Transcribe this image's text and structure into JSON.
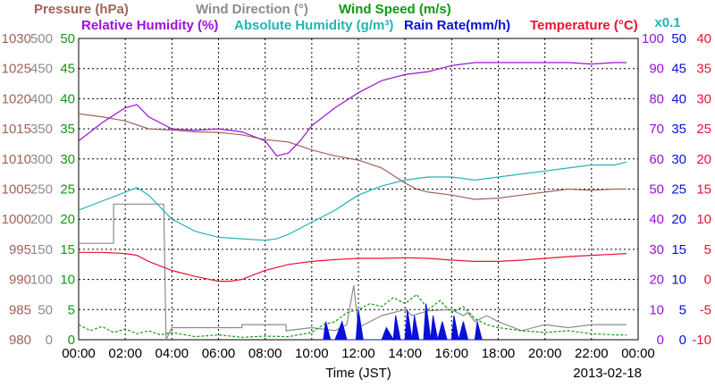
{
  "chart_data": {
    "type": "line",
    "date": "2013-02-18",
    "xlabel": "Time (JST)",
    "x_ticks": [
      "00:00",
      "02:00",
      "04:00",
      "06:00",
      "08:00",
      "10:00",
      "12:00",
      "14:00",
      "16:00",
      "18:00",
      "20:00",
      "22:00",
      "00:00"
    ],
    "x_range_hours": [
      0,
      24
    ],
    "grid": true,
    "legend": [
      {
        "label": "Pressure (hPa)",
        "color": "#a0635a"
      },
      {
        "label": "Wind Direction (°)",
        "color": "#8c8c8c"
      },
      {
        "label": "Wind Speed (m/s)",
        "color": "#119911"
      },
      {
        "label": "Relative Humidity (%)",
        "color": "#9a11dd"
      },
      {
        "label": "Absolute Humidity (g/m³)",
        "color": "#22b4b4"
      },
      {
        "label": "Rain Rate(mm/h)",
        "color": "#0a10d8"
      },
      {
        "label": "Temperature (°C)",
        "color": "#ee1133"
      }
    ],
    "axis_note": "x0.1",
    "axes": {
      "pressure": {
        "ticks": [
          "980",
          "985",
          "990",
          "995",
          "1000",
          "1005",
          "1010",
          "1015",
          "1020",
          "1025",
          "1030"
        ],
        "range": [
          980,
          1030
        ],
        "color": "#a0635a"
      },
      "wind_direction": {
        "ticks": [
          "0",
          "50",
          "100",
          "150",
          "200",
          "250",
          "300",
          "350",
          "400",
          "450",
          "500"
        ],
        "range": [
          0,
          500
        ],
        "color": "#8c8c8c"
      },
      "wind_speed": {
        "ticks": [
          "0",
          "5",
          "10",
          "15",
          "20",
          "25",
          "30",
          "35",
          "40",
          "45",
          "50"
        ],
        "range": [
          0,
          50
        ],
        "color": "#119911"
      },
      "humidity": {
        "ticks": [
          "0",
          "10",
          "20",
          "30",
          "40",
          "50",
          "60",
          "70",
          "80",
          "90",
          "100"
        ],
        "range": [
          0,
          100
        ],
        "color": "#9a11dd"
      },
      "rain": {
        "ticks": [
          "0",
          "5",
          "10",
          "15",
          "20",
          "25",
          "30",
          "35",
          "40",
          "45",
          "50"
        ],
        "range": [
          0,
          50
        ],
        "color": "#0a10d8"
      },
      "temperature": {
        "ticks": [
          "-10",
          "-5",
          "0",
          "5",
          "10",
          "15",
          "20",
          "25",
          "30",
          "35",
          "40"
        ],
        "range": [
          -10,
          40
        ],
        "color": "#ee1133"
      }
    },
    "series": [
      {
        "name": "Pressure (hPa)",
        "key": "pressure",
        "color": "#a0635a",
        "points": [
          [
            0,
            1017.5
          ],
          [
            1,
            1017.0
          ],
          [
            2,
            1016.3
          ],
          [
            3,
            1015.0
          ],
          [
            4,
            1014.8
          ],
          [
            5,
            1014.5
          ],
          [
            6,
            1014.4
          ],
          [
            7,
            1014.0
          ],
          [
            8,
            1013.2
          ],
          [
            9,
            1012.8
          ],
          [
            10,
            1011.5
          ],
          [
            11,
            1010.5
          ],
          [
            12,
            1009.8
          ],
          [
            13,
            1008.5
          ],
          [
            14,
            1006.0
          ],
          [
            14.5,
            1005.0
          ],
          [
            15,
            1004.5
          ],
          [
            16,
            1004.0
          ],
          [
            17,
            1003.3
          ],
          [
            18,
            1003.5
          ],
          [
            19,
            1004.0
          ],
          [
            20,
            1004.5
          ],
          [
            21,
            1005.0
          ],
          [
            22,
            1004.8
          ],
          [
            23,
            1005.0
          ],
          [
            23.5,
            1005.0
          ]
        ]
      },
      {
        "name": "Wind Direction (°)",
        "key": "wind_direction",
        "color": "#8c8c8c",
        "points": [
          [
            0,
            160
          ],
          [
            1.5,
            160
          ],
          [
            1.5,
            225
          ],
          [
            3.65,
            225
          ],
          [
            3.75,
            0
          ],
          [
            4,
            20
          ],
          [
            6.5,
            20
          ],
          [
            7,
            20
          ],
          [
            7,
            25
          ],
          [
            8.9,
            25
          ],
          [
            8.9,
            15
          ],
          [
            10,
            20
          ],
          [
            11,
            15
          ],
          [
            11.5,
            25
          ],
          [
            11.8,
            90
          ],
          [
            12,
            20
          ],
          [
            13,
            40
          ],
          [
            14,
            50
          ],
          [
            14.3,
            40
          ],
          [
            15,
            48
          ],
          [
            16,
            50
          ],
          [
            16.5,
            40
          ],
          [
            16.7,
            45
          ],
          [
            17,
            30
          ],
          [
            17.5,
            40
          ],
          [
            18,
            30
          ],
          [
            19,
            15
          ],
          [
            20,
            25
          ],
          [
            21,
            20
          ],
          [
            22,
            25
          ],
          [
            23.5,
            25
          ]
        ]
      },
      {
        "name": "Wind Speed (m/s)",
        "key": "wind_speed",
        "color": "#119911",
        "points": [
          [
            0,
            2.5
          ],
          [
            0.5,
            1.5
          ],
          [
            1,
            2.2
          ],
          [
            1.5,
            1.2
          ],
          [
            2,
            1.8
          ],
          [
            2.5,
            1.0
          ],
          [
            3,
            1.5
          ],
          [
            3.5,
            0.8
          ],
          [
            4,
            1.2
          ],
          [
            5,
            0.5
          ],
          [
            6,
            0.8
          ],
          [
            7,
            0.4
          ],
          [
            8,
            0.6
          ],
          [
            9,
            0.5
          ],
          [
            10,
            1.2
          ],
          [
            10.5,
            2.5
          ],
          [
            11,
            3
          ],
          [
            11.5,
            4.5
          ],
          [
            12,
            5
          ],
          [
            12.5,
            6
          ],
          [
            13,
            5.5
          ],
          [
            13.5,
            7
          ],
          [
            14,
            6
          ],
          [
            14.5,
            7.5
          ],
          [
            15,
            5
          ],
          [
            15.5,
            6.5
          ],
          [
            16,
            4.5
          ],
          [
            16.5,
            5.5
          ],
          [
            17,
            3.5
          ],
          [
            17.5,
            2.5
          ],
          [
            18,
            2
          ],
          [
            19,
            1.5
          ],
          [
            20,
            1.2
          ],
          [
            21,
            1.5
          ],
          [
            22,
            1.0
          ],
          [
            23,
            0.8
          ],
          [
            23.5,
            0.8
          ]
        ]
      },
      {
        "name": "Relative Humidity (%)",
        "key": "humidity",
        "color": "#9a11dd",
        "points": [
          [
            0,
            66
          ],
          [
            1,
            72
          ],
          [
            2,
            77
          ],
          [
            2.5,
            78
          ],
          [
            3,
            74
          ],
          [
            4,
            70
          ],
          [
            5,
            69.5
          ],
          [
            6,
            70
          ],
          [
            7,
            69
          ],
          [
            8,
            66
          ],
          [
            8.5,
            61
          ],
          [
            9,
            62
          ],
          [
            9.5,
            66
          ],
          [
            10,
            71
          ],
          [
            11,
            77
          ],
          [
            12,
            82
          ],
          [
            13,
            86
          ],
          [
            14,
            88
          ],
          [
            15,
            89
          ],
          [
            16,
            91
          ],
          [
            17,
            92
          ],
          [
            18,
            92
          ],
          [
            19,
            92
          ],
          [
            20,
            92
          ],
          [
            21,
            92
          ],
          [
            22,
            91.5
          ],
          [
            23,
            92
          ],
          [
            23.5,
            92
          ]
        ]
      },
      {
        "name": "Absolute Humidity (g/m³)",
        "key": "humidity",
        "color": "#22b4b4",
        "points": [
          [
            0,
            43
          ],
          [
            1,
            46
          ],
          [
            2,
            49
          ],
          [
            2.5,
            50.5
          ],
          [
            3,
            48
          ],
          [
            4,
            40
          ],
          [
            5,
            36
          ],
          [
            6,
            34
          ],
          [
            7,
            33.5
          ],
          [
            8,
            33
          ],
          [
            8.5,
            33.5
          ],
          [
            9,
            35
          ],
          [
            10,
            39
          ],
          [
            11,
            43
          ],
          [
            12,
            48
          ],
          [
            13,
            51
          ],
          [
            14,
            53
          ],
          [
            15,
            54
          ],
          [
            16,
            54
          ],
          [
            17,
            53
          ],
          [
            18,
            54
          ],
          [
            19,
            55
          ],
          [
            20,
            56
          ],
          [
            21,
            57
          ],
          [
            22,
            58
          ],
          [
            23,
            58
          ],
          [
            23.5,
            59
          ]
        ]
      },
      {
        "name": "Rain Rate(mm/h)",
        "key": "rain",
        "color": "#0a10d8",
        "points": [
          [
            10.5,
            0
          ],
          [
            10.6,
            3
          ],
          [
            10.8,
            0
          ],
          [
            11,
            0
          ],
          [
            11.3,
            3
          ],
          [
            11.5,
            0
          ],
          [
            11.9,
            0
          ],
          [
            12,
            5
          ],
          [
            12.2,
            0
          ],
          [
            13,
            0
          ],
          [
            13.2,
            2
          ],
          [
            13.5,
            0
          ],
          [
            13.6,
            4
          ],
          [
            13.8,
            0
          ],
          [
            14,
            0
          ],
          [
            14.1,
            5
          ],
          [
            14.3,
            0
          ],
          [
            14.4,
            4
          ],
          [
            14.6,
            0
          ],
          [
            14.8,
            0
          ],
          [
            14.9,
            6
          ],
          [
            15.1,
            0
          ],
          [
            15.2,
            4
          ],
          [
            15.4,
            0
          ],
          [
            15.6,
            3
          ],
          [
            15.8,
            0
          ],
          [
            16,
            0
          ],
          [
            16.1,
            4
          ],
          [
            16.3,
            0
          ],
          [
            16.5,
            3
          ],
          [
            16.7,
            0
          ],
          [
            17,
            0
          ],
          [
            17.1,
            3
          ],
          [
            17.3,
            0
          ]
        ]
      },
      {
        "name": "Temperature (°C)",
        "key": "temperature",
        "color": "#ee1133",
        "points": [
          [
            0,
            4.5
          ],
          [
            1,
            4.5
          ],
          [
            2,
            4.3
          ],
          [
            2.5,
            4
          ],
          [
            3,
            3
          ],
          [
            4,
            1.5
          ],
          [
            5,
            0.5
          ],
          [
            6,
            -0.3
          ],
          [
            6.5,
            -0.3
          ],
          [
            7,
            0
          ],
          [
            8,
            1.5
          ],
          [
            9,
            2.5
          ],
          [
            10,
            3
          ],
          [
            11,
            3.3
          ],
          [
            12,
            3.5
          ],
          [
            13,
            3.5
          ],
          [
            14,
            3.6
          ],
          [
            15,
            3.5
          ],
          [
            16,
            3.2
          ],
          [
            17,
            3.0
          ],
          [
            18,
            3.0
          ],
          [
            19,
            3.2
          ],
          [
            20,
            3.5
          ],
          [
            21,
            3.8
          ],
          [
            22,
            4.0
          ],
          [
            23,
            4.2
          ],
          [
            23.5,
            4.3
          ]
        ]
      }
    ]
  }
}
